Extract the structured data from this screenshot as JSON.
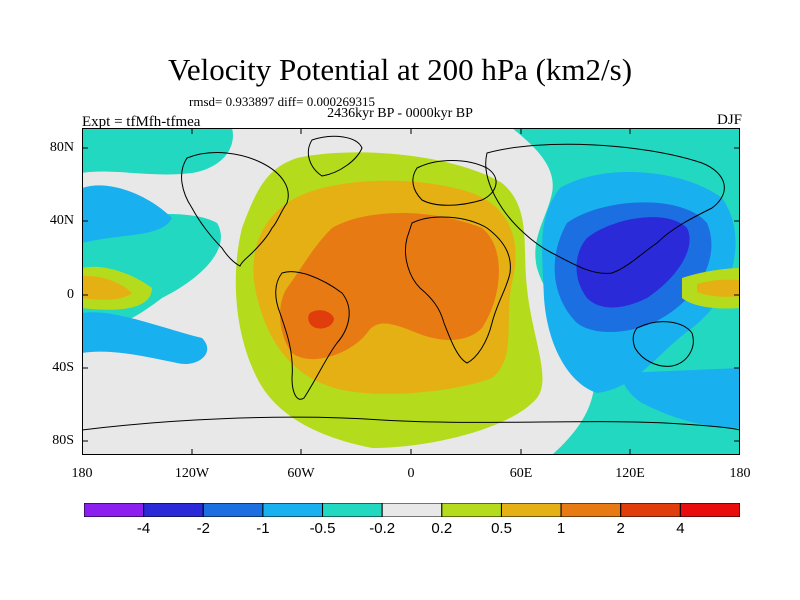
{
  "figure": {
    "title": "Velocity Potential at 200 hPa (km2/s)",
    "stats": "rmsd= 0.933897 diff= 0.000269315",
    "period": "2436kyr BP - 0000kyr BP",
    "experiment": "Expt = tfMfh-tfmea",
    "season": "DJF"
  },
  "axes": {
    "lat_labels": [
      "80N",
      "40N",
      "0",
      "40S",
      "80S"
    ],
    "lon_labels": [
      "180",
      "120W",
      "60W",
      "0",
      "60E",
      "120E",
      "180"
    ]
  },
  "colorbar": {
    "levels": [
      "-4",
      "-2",
      "-1",
      "-0.5",
      "-0.2",
      "0.2",
      "0.5",
      "1",
      "2",
      "4"
    ],
    "colors": [
      "#8c1ff0",
      "#2a2ad8",
      "#1c6fe0",
      "#18b0ee",
      "#22d8c0",
      "#e8e8e8",
      "#b4dc1c",
      "#e4b014",
      "#e87a14",
      "#e03c0c",
      "#e80c0c"
    ]
  },
  "map": {
    "projection": "cylindrical equidistant",
    "fill_colors": {
      "background": "#e8e8e8",
      "neg_02": "#22d8c0",
      "neg_05": "#18b0ee",
      "neg_1": "#1c6fe0",
      "neg_2": "#2a2ad8",
      "pos_02": "#b4dc1c",
      "pos_05": "#e4b014",
      "pos_1": "#e87a14",
      "pos_2": "#e03c0c"
    }
  }
}
